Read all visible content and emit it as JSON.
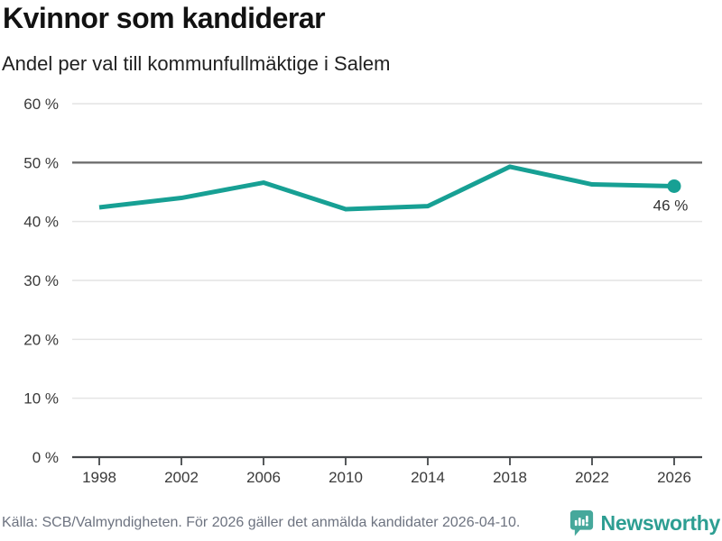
{
  "header": {
    "title": "Kvinnor som kandiderar",
    "subtitle": "Andel per val till kommunfullmäktige i Salem"
  },
  "chart_data": {
    "type": "line",
    "title": "Kvinnor som kandiderar",
    "subtitle": "Andel per val till kommunfullmäktige i Salem",
    "categories": [
      "1998",
      "2002",
      "2006",
      "2010",
      "2014",
      "2018",
      "2022",
      "2026"
    ],
    "values": [
      42.4,
      44.0,
      46.6,
      42.1,
      42.6,
      49.3,
      46.3,
      46.0
    ],
    "end_point_label": "46 %",
    "y_tick_values": [
      0,
      10,
      20,
      30,
      40,
      50,
      60
    ],
    "y_tick_labels": [
      "0 %",
      "10 %",
      "20 %",
      "30 %",
      "40 %",
      "50 %",
      "60 %"
    ],
    "ylim": [
      0,
      60
    ],
    "grid": true,
    "legend": "none",
    "emphasized_gridline_value": 50,
    "line_color": "#17a094",
    "dot_color": "#17a094",
    "axis_color": "#44474a",
    "emphasized_gridline_color": "#6e6e6e",
    "gridline_color": "#e4e4e4",
    "tick_label_color": "#3a3a3a",
    "end_label_color": "#333333"
  },
  "footer": {
    "source_text": "Källa: SCB/Valmyndigheten. För 2026 gäller det anmälda kandidater 2026-04-10.",
    "brand_name": "Newsworthy",
    "brand_icon": "bar-chart-speech-bubble",
    "brand_color": "#2d9e92",
    "brand_icon_color": "#46a89b"
  }
}
